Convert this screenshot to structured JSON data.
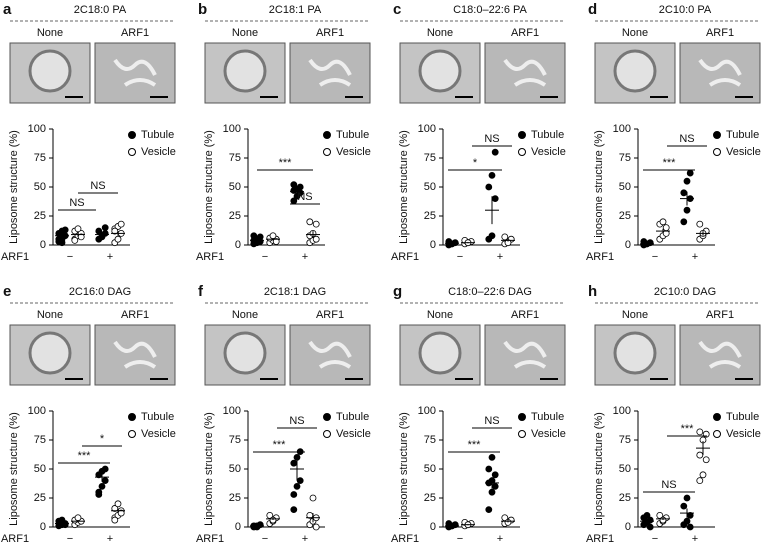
{
  "chart_data": [
    {
      "type": "dot",
      "panel": "a",
      "title": "2C18:0 PA",
      "image_labels": [
        "None",
        "ARF1"
      ],
      "ylabel": "Liposome structure (%)",
      "xlabel": "ARF1",
      "categories": [
        "−",
        "+"
      ],
      "ylim": [
        0,
        100
      ],
      "yticks": [
        0,
        25,
        50,
        75,
        100
      ],
      "series": [
        {
          "name": "Tubule",
          "color": "#000000",
          "filled": true,
          "values": [
            [
              3,
              5,
              8,
              10,
              12,
              13,
              5,
              2
            ],
            [
              5,
              8,
              10,
              12,
              7,
              15
            ]
          ],
          "means": [
            8,
            9
          ],
          "errors": [
            2,
            2
          ]
        },
        {
          "name": "Vesicle",
          "color": "#000000",
          "filled": false,
          "values": [
            [
              5,
              8,
              10,
              12,
              14,
              7,
              4
            ],
            [
              2,
              5,
              10,
              14,
              16,
              18,
              12
            ]
          ],
          "means": [
            9,
            10
          ],
          "errors": [
            2,
            2
          ]
        }
      ],
      "annotations": [
        "NS",
        "NS"
      ]
    },
    {
      "type": "dot",
      "panel": "b",
      "title": "2C18:1 PA",
      "image_labels": [
        "None",
        "ARF1"
      ],
      "ylabel": "Liposome structure (%)",
      "xlabel": "ARF1",
      "categories": [
        "−",
        "+"
      ],
      "ylim": [
        0,
        100
      ],
      "yticks": [
        0,
        25,
        50,
        75,
        100
      ],
      "series": [
        {
          "name": "Tubule",
          "color": "#000000",
          "filled": true,
          "values": [
            [
              1,
              2,
              3,
              4,
              5,
              7,
              8
            ],
            [
              38,
              42,
              45,
              47,
              48,
              50,
              52
            ]
          ],
          "means": [
            4,
            46
          ],
          "errors": [
            1,
            2
          ]
        },
        {
          "name": "Vesicle",
          "color": "#000000",
          "filled": false,
          "values": [
            [
              2,
              4,
              5,
              6,
              8,
              3
            ],
            [
              2,
              4,
              5,
              8,
              10,
              18,
              20
            ]
          ],
          "means": [
            5,
            9
          ],
          "errors": [
            1,
            3
          ]
        }
      ],
      "annotations": [
        "***",
        "NS"
      ]
    },
    {
      "type": "dot",
      "panel": "c",
      "title": "C18:0–22:6 PA",
      "image_labels": [
        "None",
        "ARF1"
      ],
      "ylabel": "Liposome structure (%)",
      "xlabel": "ARF1",
      "categories": [
        "−",
        "+"
      ],
      "ylim": [
        0,
        100
      ],
      "yticks": [
        0,
        25,
        50,
        75,
        100
      ],
      "series": [
        {
          "name": "Tubule",
          "color": "#000000",
          "filled": true,
          "values": [
            [
              0,
              1,
              2,
              3,
              1
            ],
            [
              5,
              8,
              40,
              50,
              60,
              80
            ]
          ],
          "means": [
            1.5,
            30
          ],
          "errors": [
            0.5,
            12
          ]
        },
        {
          "name": "Vesicle",
          "color": "#000000",
          "filled": false,
          "values": [
            [
              1,
              2,
              3,
              4,
              2
            ],
            [
              1,
              3,
              5,
              7,
              2
            ]
          ],
          "means": [
            2,
            4
          ],
          "errors": [
            0.5,
            1
          ]
        }
      ],
      "annotations": [
        "*",
        "NS"
      ]
    },
    {
      "type": "dot",
      "panel": "d",
      "title": "2C10:0 PA",
      "image_labels": [
        "None",
        "ARF1"
      ],
      "ylabel": "Liposome structure (%)",
      "xlabel": "ARF1",
      "categories": [
        "−",
        "+"
      ],
      "ylim": [
        0,
        100
      ],
      "yticks": [
        0,
        25,
        50,
        75,
        100
      ],
      "series": [
        {
          "name": "Tubule",
          "color": "#000000",
          "filled": true,
          "values": [
            [
              0,
              1,
              2,
              3,
              1
            ],
            [
              20,
              30,
              40,
              45,
              55,
              62
            ]
          ],
          "means": [
            1,
            40
          ],
          "errors": [
            0.5,
            6
          ]
        },
        {
          "name": "Vesicle",
          "color": "#000000",
          "filled": false,
          "values": [
            [
              5,
              8,
              10,
              18,
              20,
              15
            ],
            [
              5,
              8,
              12,
              18,
              10
            ]
          ],
          "means": [
            12,
            10
          ],
          "errors": [
            2,
            2
          ]
        }
      ],
      "annotations": [
        "***",
        "NS"
      ]
    },
    {
      "type": "dot",
      "panel": "e",
      "title": "2C16:0 DAG",
      "image_labels": [
        "None",
        "ARF1"
      ],
      "ylabel": "Liposome structure (%)",
      "xlabel": "ARF1",
      "categories": [
        "−",
        "+"
      ],
      "ylim": [
        0,
        100
      ],
      "yticks": [
        0,
        25,
        50,
        75,
        100
      ],
      "series": [
        {
          "name": "Tubule",
          "color": "#000000",
          "filled": true,
          "values": [
            [
              1,
              2,
              3,
              5,
              6,
              2
            ],
            [
              30,
              35,
              40,
              45,
              48,
              50,
              28
            ]
          ],
          "means": [
            3,
            43
          ],
          "errors": [
            1,
            4
          ]
        },
        {
          "name": "Vesicle",
          "color": "#000000",
          "filled": false,
          "values": [
            [
              2,
              4,
              5,
              6,
              8
            ],
            [
              8,
              10,
              14,
              16,
              20,
              12,
              6
            ]
          ],
          "means": [
            5,
            14
          ],
          "errors": [
            1,
            2
          ]
        }
      ],
      "annotations": [
        "***",
        "*"
      ]
    },
    {
      "type": "dot",
      "panel": "f",
      "title": "2C18:1 DAG",
      "image_labels": [
        "None",
        "ARF1"
      ],
      "ylabel": "Liposome structure (%)",
      "xlabel": "ARF1",
      "categories": [
        "−",
        "+"
      ],
      "ylim": [
        0,
        100
      ],
      "yticks": [
        0,
        25,
        50,
        75,
        100
      ],
      "series": [
        {
          "name": "Tubule",
          "color": "#000000",
          "filled": true,
          "values": [
            [
              0,
              1,
              2,
              1,
              0
            ],
            [
              15,
              35,
              40,
              55,
              60,
              65,
              28
            ]
          ],
          "means": [
            1,
            50
          ],
          "errors": [
            0.5,
            10
          ]
        },
        {
          "name": "Vesicle",
          "color": "#000000",
          "filled": false,
          "values": [
            [
              3,
              5,
              8,
              10,
              6
            ],
            [
              2,
              5,
              8,
              10,
              25,
              0
            ]
          ],
          "means": [
            7,
            8
          ],
          "errors": [
            1,
            4
          ]
        }
      ],
      "annotations": [
        "***",
        "NS"
      ]
    },
    {
      "type": "dot",
      "panel": "g",
      "title": "C18:0–22:6 DAG",
      "image_labels": [
        "None",
        "ARF1"
      ],
      "ylabel": "Liposome structure (%)",
      "xlabel": "ARF1",
      "categories": [
        "−",
        "+"
      ],
      "ylim": [
        0,
        100
      ],
      "yticks": [
        0,
        25,
        50,
        75,
        100
      ],
      "series": [
        {
          "name": "Tubule",
          "color": "#000000",
          "filled": true,
          "values": [
            [
              0,
              1,
              2,
              3,
              1
            ],
            [
              15,
              30,
              35,
              38,
              40,
              45,
              50,
              60
            ]
          ],
          "means": [
            1,
            38
          ],
          "errors": [
            0.5,
            5
          ]
        },
        {
          "name": "Vesicle",
          "color": "#000000",
          "filled": false,
          "values": [
            [
              1,
              2,
              3,
              4,
              2
            ],
            [
              3,
              5,
              6,
              8,
              4
            ]
          ],
          "means": [
            2,
            5
          ],
          "errors": [
            0.5,
            1
          ]
        }
      ],
      "annotations": [
        "***",
        "NS"
      ]
    },
    {
      "type": "dot",
      "panel": "h",
      "title": "2C10:0 DAG",
      "image_labels": [
        "None",
        "ARF1"
      ],
      "ylabel": "Liposome structure (%)",
      "xlabel": "ARF1",
      "categories": [
        "−",
        "+"
      ],
      "ylim": [
        0,
        100
      ],
      "yticks": [
        0,
        25,
        50,
        75,
        100
      ],
      "series": [
        {
          "name": "Tubule",
          "color": "#000000",
          "filled": true,
          "values": [
            [
              2,
              4,
              6,
              8,
              10,
              0
            ],
            [
              2,
              5,
              10,
              18,
              25,
              0
            ]
          ],
          "means": [
            5,
            12
          ],
          "errors": [
            1,
            4
          ]
        },
        {
          "name": "Vesicle",
          "color": "#000000",
          "filled": false,
          "values": [
            [
              3,
              5,
              8,
              10,
              6
            ],
            [
              40,
              45,
              58,
              62,
              75,
              80,
              82
            ]
          ],
          "means": [
            7,
            68
          ],
          "errors": [
            1,
            6
          ]
        }
      ],
      "annotations": [
        "NS",
        "***"
      ]
    }
  ]
}
